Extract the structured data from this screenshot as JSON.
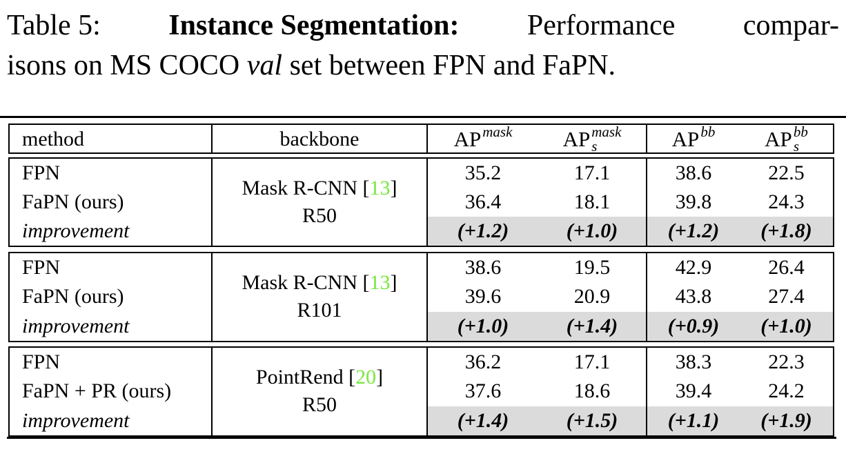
{
  "caption": {
    "table_label": "Table 5:",
    "title_bold": "Instance Segmentation:",
    "line1_rest_a": "Performance",
    "line1_rest_b": "compar-",
    "line2_pre": "isons on MS COCO",
    "line2_italic": "val",
    "line2_post": "set between FPN and FaPN."
  },
  "symbols": {
    "cite_open": "[",
    "cite_close": "]"
  },
  "colors": {
    "citation_green": "#76e83e",
    "highlight_gray": "#dbdbdb"
  },
  "table": {
    "headers": {
      "method": "method",
      "backbone": "backbone"
    },
    "metrics": [
      {
        "base": "AP",
        "sup": "mask",
        "sub": ""
      },
      {
        "base": "AP",
        "sup": "mask",
        "sub": "s"
      },
      {
        "base": "AP",
        "sup": "bb",
        "sub": ""
      },
      {
        "base": "AP",
        "sup": "bb",
        "sub": "s"
      }
    ],
    "groups": [
      {
        "backbone_name": "Mask R-CNN",
        "backbone_ref": "13",
        "backbone_variant": "R50",
        "rows": [
          {
            "method": "FPN",
            "values": [
              "35.2",
              "17.1",
              "38.6",
              "22.5"
            ]
          },
          {
            "method": "FaPN (ours)",
            "values": [
              "36.4",
              "18.1",
              "39.8",
              "24.3"
            ]
          },
          {
            "method": "improvement",
            "values": [
              "(+1.2)",
              "(+1.0)",
              "(+1.2)",
              "(+1.8)"
            ]
          }
        ]
      },
      {
        "backbone_name": "Mask R-CNN",
        "backbone_ref": "13",
        "backbone_variant": "R101",
        "rows": [
          {
            "method": "FPN",
            "values": [
              "38.6",
              "19.5",
              "42.9",
              "26.4"
            ]
          },
          {
            "method": "FaPN (ours)",
            "values": [
              "39.6",
              "20.9",
              "43.8",
              "27.4"
            ]
          },
          {
            "method": "improvement",
            "values": [
              "(+1.0)",
              "(+1.4)",
              "(+0.9)",
              "(+1.0)"
            ]
          }
        ]
      },
      {
        "backbone_name": "PointRend",
        "backbone_ref": "20",
        "backbone_variant": "R50",
        "rows": [
          {
            "method": "FPN",
            "values": [
              "36.2",
              "17.1",
              "38.3",
              "22.3"
            ]
          },
          {
            "method": "FaPN + PR (ours)",
            "values": [
              "37.6",
              "18.6",
              "39.4",
              "24.2"
            ]
          },
          {
            "method": "improvement",
            "values": [
              "(+1.4)",
              "(+1.5)",
              "(+1.1)",
              "(+1.9)"
            ]
          }
        ]
      }
    ]
  }
}
